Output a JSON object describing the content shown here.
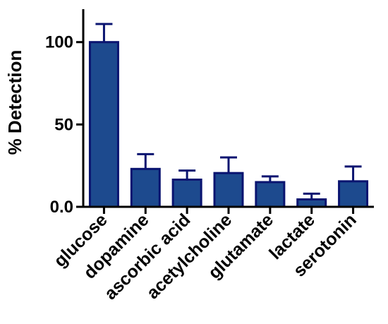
{
  "chart_data": {
    "type": "bar",
    "title": "",
    "xlabel": "",
    "ylabel": "% Detection",
    "ylim": [
      0,
      120
    ],
    "yticks": [
      0,
      50,
      100
    ],
    "ytick_labels": [
      "0.0",
      "50",
      "100"
    ],
    "grid": false,
    "legend": "none",
    "categories": [
      "glucose",
      "dopamine",
      "ascorbic acid",
      "acetylcholine",
      "glutamate",
      "lactate",
      "serotonin"
    ],
    "values": [
      100,
      23,
      16.5,
      20.5,
      15,
      4.5,
      15.5
    ],
    "errors": [
      11,
      9,
      5.5,
      9.5,
      3.5,
      3.5,
      9
    ]
  },
  "colors": {
    "bar_fill": "#1d4a8e",
    "bar_stroke": "#0a1470",
    "axis": "#000000"
  }
}
